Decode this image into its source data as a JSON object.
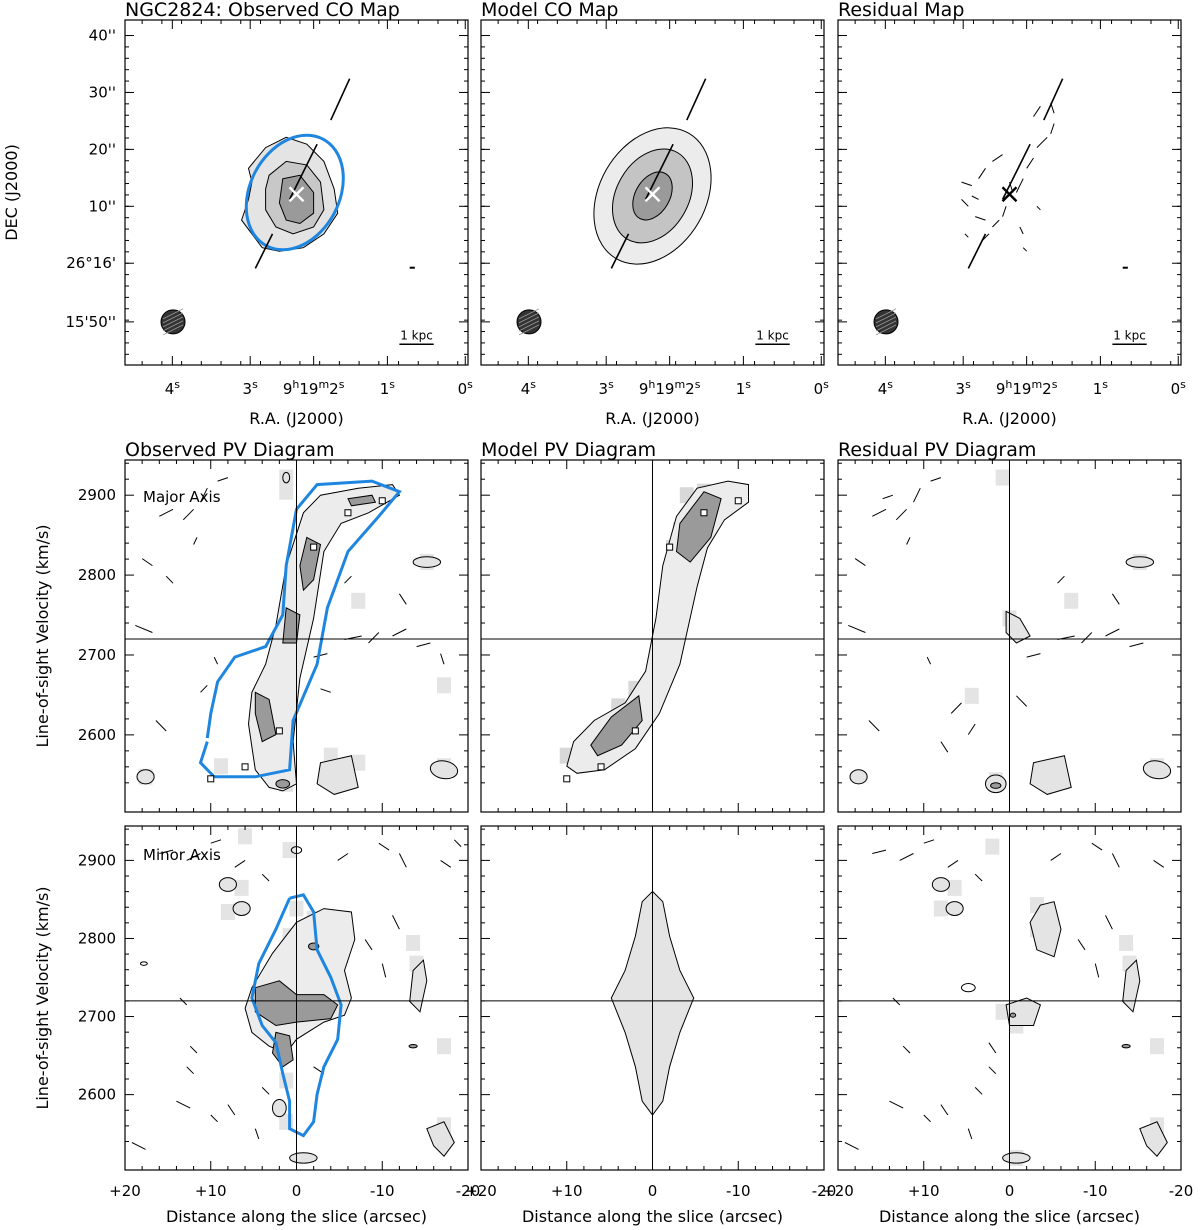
{
  "figure": {
    "panels": {
      "obs_map_title": "NGC2824: Observed CO Map",
      "model_map_title": "Model CO Map",
      "resid_map_title": "Residual Map",
      "obs_pv_title": "Observed PV Diagram",
      "model_pv_title": "Model PV Diagram",
      "resid_pv_title": "Residual PV Diagram",
      "major_axis": "Major Axis",
      "minor_axis": "Minor Axis"
    },
    "map_axes": {
      "ra_label": "R.A. (J2000)",
      "dec_label": "DEC (J2000)",
      "ra_ticks": [
        {
          "main": "4",
          "sup": "s"
        },
        {
          "main": "3",
          "sup": "s"
        },
        {
          "main": "9",
          "sup": "h",
          "main2": "19",
          "sup2": "m",
          "main3": "2",
          "sup3": "s"
        },
        {
          "main": "1",
          "sup": "s"
        },
        {
          "main": "0",
          "sup": "s"
        }
      ],
      "dec_ticks": [
        "40''",
        "30''",
        "20''",
        "10''",
        "26°16'",
        "15'50''"
      ],
      "scalebar": "1 kpc"
    },
    "pv_axes": {
      "xlabel": "Distance along the slice (arcsec)",
      "ylabel": "Line-of-sight Velocity (km/s)",
      "x_ticks": [
        "+20",
        "+10",
        "0",
        "-10",
        "-20"
      ],
      "y_ticks": [
        "2900",
        "2800",
        "2700",
        "2600"
      ]
    },
    "colors": {
      "contour": "#000000",
      "fill_light": "#e4e4e4",
      "fill_dark": "#9a9a9a",
      "overlay": "#1f86e0"
    }
  },
  "chart_data": [
    {
      "type": "map",
      "title": "NGC2824: Observed CO Map",
      "xlabel": "R.A. (J2000)",
      "ylabel": "DEC (J2000)",
      "x_ticks": [
        "4s",
        "3s",
        "9h19m2s",
        "1s",
        "0s"
      ],
      "y_ticks": [
        "40''",
        "30''",
        "20''",
        "10''",
        "26°16'",
        "15'50''"
      ]
    },
    {
      "type": "map",
      "title": "Model CO Map",
      "xlabel": "R.A. (J2000)"
    },
    {
      "type": "map",
      "title": "Residual Map",
      "xlabel": "R.A. (J2000)"
    },
    {
      "type": "pv",
      "title": "Observed PV Diagram",
      "annotation": "Major Axis",
      "ylabel": "Line-of-sight Velocity (km/s)",
      "xlim": [
        20,
        -20
      ],
      "y_ticks": [
        2900,
        2800,
        2700,
        2600
      ],
      "systemic_velocity": 2720,
      "peak_points": [
        {
          "x": -10,
          "y": 2893
        },
        {
          "x": -6,
          "y": 2878
        },
        {
          "x": -2,
          "y": 2835
        },
        {
          "x": 2,
          "y": 2605
        },
        {
          "x": 6,
          "y": 2560
        },
        {
          "x": 10,
          "y": 2545
        }
      ]
    },
    {
      "type": "pv",
      "title": "Model PV Diagram",
      "xlim": [
        20,
        -20
      ],
      "systemic_velocity": 2720,
      "peak_points": [
        {
          "x": -10,
          "y": 2893
        },
        {
          "x": -6,
          "y": 2878
        },
        {
          "x": -2,
          "y": 2835
        },
        {
          "x": 2,
          "y": 2605
        },
        {
          "x": 6,
          "y": 2560
        },
        {
          "x": 10,
          "y": 2545
        }
      ]
    },
    {
      "type": "pv",
      "title": "Residual PV Diagram",
      "xlim": [
        20,
        -20
      ],
      "systemic_velocity": 2720
    },
    {
      "type": "pv",
      "annotation": "Minor Axis",
      "xlabel": "Distance along the slice (arcsec)",
      "ylabel": "Line-of-sight Velocity (km/s)",
      "xlim": [
        20,
        -20
      ],
      "x_ticks": [
        "+20",
        "+10",
        "0",
        "-10",
        "-20"
      ],
      "y_ticks": [
        2900,
        2800,
        2700,
        2600
      ],
      "systemic_velocity": 2720
    },
    {
      "type": "pv",
      "xlim": [
        20,
        -20
      ],
      "x_ticks": [
        "+20",
        "+10",
        "0",
        "-10",
        "-20"
      ],
      "systemic_velocity": 2720
    },
    {
      "type": "pv",
      "xlim": [
        20,
        -20
      ],
      "x_ticks": [
        "+20",
        "+10",
        "0",
        "-10",
        "-20"
      ],
      "systemic_velocity": 2720
    }
  ]
}
